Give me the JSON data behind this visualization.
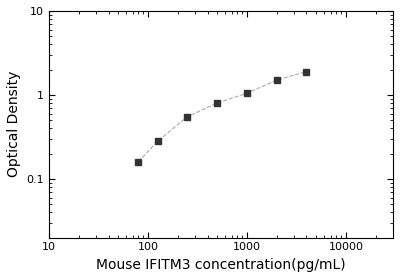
{
  "x": [
    80,
    125,
    250,
    500,
    1000,
    2000,
    4000
  ],
  "y": [
    0.16,
    0.28,
    0.55,
    0.8,
    1.05,
    1.5,
    1.9
  ],
  "xlabel": "Mouse IFITM3 concentration(pg/mL)",
  "ylabel": "Optical Density",
  "xlim": [
    10,
    30000
  ],
  "ylim": [
    0.02,
    10
  ],
  "xticks": [
    10,
    100,
    1000,
    10000
  ],
  "xtick_labels": [
    "10",
    "100",
    "1000",
    "10000"
  ],
  "yticks": [
    0.1,
    1
  ],
  "ytick_labels": [
    "0.1",
    "1"
  ],
  "ytick_top": 10,
  "line_color": "#aaaaaa",
  "marker_color": "#333333",
  "marker": "s",
  "marker_size": 4,
  "linewidth": 0.8,
  "xlabel_fontsize": 10,
  "ylabel_fontsize": 10,
  "tick_fontsize": 8,
  "background_color": "#ffffff"
}
